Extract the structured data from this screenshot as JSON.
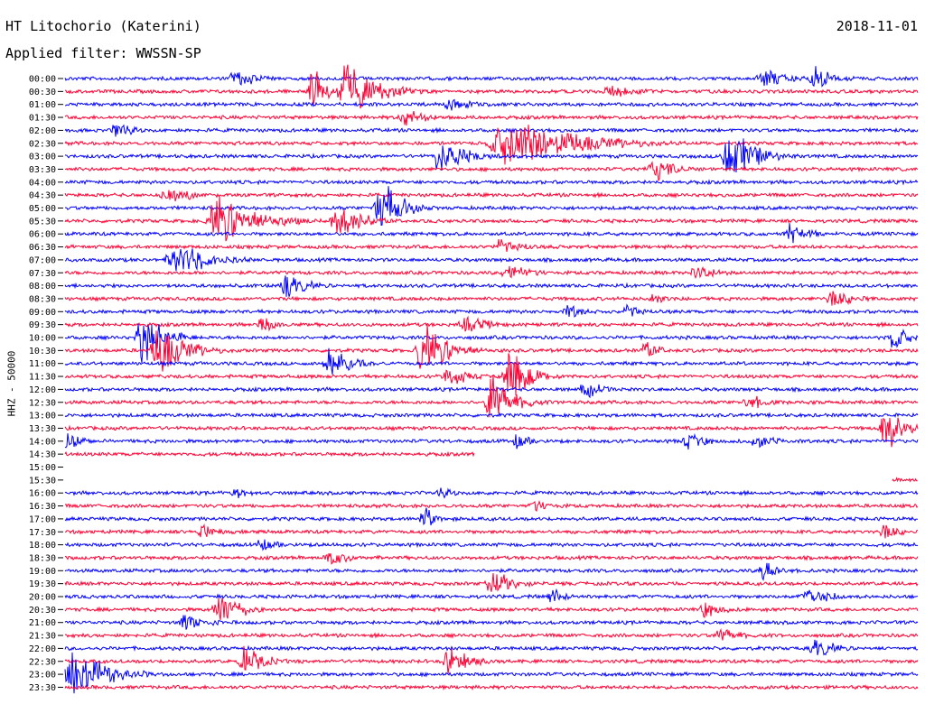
{
  "header": {
    "title": "HT Litochorio (Katerini)",
    "date": "2018-11-01",
    "filter": "Applied filter: WWSSN-SP"
  },
  "colors": {
    "blue": "#0000ff",
    "red": "#ff0033"
  },
  "chart_data": {
    "type": "line",
    "ylabel": "HHZ - 50000",
    "grid": false,
    "legend": "none",
    "rows": [
      {
        "label": "00:00",
        "color": "blue",
        "flat": false,
        "end": 1.0,
        "bursts": [
          [
            0.2,
            0.04,
            0.4
          ],
          [
            0.82,
            0.05,
            0.4
          ],
          [
            0.88,
            0.04,
            0.5
          ]
        ]
      },
      {
        "label": "00:30",
        "color": "red",
        "flat": false,
        "end": 1.0,
        "bursts": [
          [
            0.29,
            0.02,
            1.0
          ],
          [
            0.33,
            0.06,
            1.0
          ],
          [
            0.64,
            0.06,
            0.2
          ]
        ]
      },
      {
        "label": "01:00",
        "color": "blue",
        "flat": false,
        "end": 1.0,
        "bursts": [
          [
            0.45,
            0.05,
            0.2
          ]
        ]
      },
      {
        "label": "01:30",
        "color": "red",
        "flat": false,
        "end": 1.0,
        "bursts": [
          [
            0.4,
            0.05,
            0.3
          ]
        ]
      },
      {
        "label": "02:00",
        "color": "blue",
        "flat": false,
        "end": 1.0,
        "bursts": [
          [
            0.06,
            0.03,
            0.4
          ]
        ]
      },
      {
        "label": "02:30",
        "color": "red",
        "flat": false,
        "end": 1.0,
        "bursts": [
          [
            0.52,
            0.12,
            1.0
          ]
        ]
      },
      {
        "label": "03:00",
        "color": "blue",
        "flat": false,
        "end": 1.0,
        "bursts": [
          [
            0.44,
            0.05,
            0.8
          ],
          [
            0.78,
            0.05,
            1.0
          ]
        ]
      },
      {
        "label": "03:30",
        "color": "red",
        "flat": false,
        "end": 1.0,
        "bursts": [
          [
            0.69,
            0.04,
            0.5
          ]
        ]
      },
      {
        "label": "04:00",
        "color": "blue",
        "flat": false,
        "end": 1.0,
        "bursts": []
      },
      {
        "label": "04:30",
        "color": "red",
        "flat": false,
        "end": 1.0,
        "bursts": [
          [
            0.12,
            0.05,
            0.3
          ]
        ]
      },
      {
        "label": "05:00",
        "color": "blue",
        "flat": false,
        "end": 1.0,
        "bursts": [
          [
            0.37,
            0.04,
            1.0
          ]
        ]
      },
      {
        "label": "05:30",
        "color": "red",
        "flat": false,
        "end": 1.0,
        "bursts": [
          [
            0.18,
            0.07,
            1.0
          ],
          [
            0.32,
            0.05,
            0.7
          ]
        ]
      },
      {
        "label": "06:00",
        "color": "blue",
        "flat": false,
        "end": 1.0,
        "bursts": [
          [
            0.85,
            0.04,
            0.4
          ]
        ]
      },
      {
        "label": "06:30",
        "color": "red",
        "flat": false,
        "end": 1.0,
        "bursts": [
          [
            0.51,
            0.05,
            0.3
          ]
        ]
      },
      {
        "label": "07:00",
        "color": "blue",
        "flat": false,
        "end": 1.0,
        "bursts": [
          [
            0.13,
            0.06,
            0.8
          ]
        ]
      },
      {
        "label": "07:30",
        "color": "red",
        "flat": false,
        "end": 1.0,
        "bursts": [
          [
            0.52,
            0.05,
            0.3
          ],
          [
            0.74,
            0.04,
            0.3
          ]
        ]
      },
      {
        "label": "08:00",
        "color": "blue",
        "flat": false,
        "end": 1.0,
        "bursts": [
          [
            0.26,
            0.04,
            0.5
          ]
        ]
      },
      {
        "label": "08:30",
        "color": "red",
        "flat": false,
        "end": 1.0,
        "bursts": [
          [
            0.69,
            0.03,
            0.2
          ],
          [
            0.9,
            0.05,
            0.3
          ]
        ]
      },
      {
        "label": "09:00",
        "color": "blue",
        "flat": false,
        "end": 1.0,
        "bursts": [
          [
            0.59,
            0.03,
            0.3
          ],
          [
            0.66,
            0.03,
            0.3
          ]
        ]
      },
      {
        "label": "09:30",
        "color": "red",
        "flat": false,
        "end": 1.0,
        "bursts": [
          [
            0.23,
            0.03,
            0.3
          ],
          [
            0.47,
            0.05,
            0.3
          ]
        ]
      },
      {
        "label": "10:00",
        "color": "blue",
        "flat": false,
        "end": 1.0,
        "bursts": [
          [
            0.09,
            0.04,
            1.0
          ],
          [
            0.97,
            0.03,
            0.6
          ]
        ]
      },
      {
        "label": "10:30",
        "color": "red",
        "flat": false,
        "end": 1.0,
        "bursts": [
          [
            0.11,
            0.05,
            1.0
          ],
          [
            0.42,
            0.05,
            1.0
          ],
          [
            0.68,
            0.03,
            0.4
          ]
        ]
      },
      {
        "label": "11:00",
        "color": "blue",
        "flat": false,
        "end": 1.0,
        "bursts": [
          [
            0.31,
            0.04,
            0.7
          ]
        ]
      },
      {
        "label": "11:30",
        "color": "red",
        "flat": false,
        "end": 1.0,
        "bursts": [
          [
            0.45,
            0.04,
            0.4
          ],
          [
            0.52,
            0.04,
            1.0
          ]
        ]
      },
      {
        "label": "12:00",
        "color": "blue",
        "flat": false,
        "end": 1.0,
        "bursts": [
          [
            0.61,
            0.04,
            0.3
          ]
        ]
      },
      {
        "label": "12:30",
        "color": "red",
        "flat": false,
        "end": 1.0,
        "bursts": [
          [
            0.5,
            0.04,
            1.0
          ],
          [
            0.8,
            0.04,
            0.3
          ]
        ]
      },
      {
        "label": "13:00",
        "color": "blue",
        "flat": false,
        "end": 1.0,
        "bursts": []
      },
      {
        "label": "13:30",
        "color": "red",
        "flat": false,
        "end": 1.0,
        "bursts": [
          [
            0.96,
            0.03,
            1.0
          ]
        ]
      },
      {
        "label": "14:00",
        "color": "blue",
        "flat": false,
        "end": 1.0,
        "bursts": [
          [
            0.0,
            0.03,
            0.5
          ],
          [
            0.53,
            0.03,
            0.3
          ],
          [
            0.73,
            0.04,
            0.3
          ],
          [
            0.81,
            0.04,
            0.3
          ]
        ]
      },
      {
        "label": "14:30",
        "color": "red",
        "flat": false,
        "end": 0.48,
        "bursts": []
      },
      {
        "label": "15:00",
        "color": "blue",
        "flat": true,
        "end": 0.0,
        "bursts": []
      },
      {
        "label": "15:30",
        "color": "red",
        "flat": true,
        "end": 0.0,
        "bursts": [],
        "tail": [
          0.97,
          1.0
        ]
      },
      {
        "label": "16:00",
        "color": "blue",
        "flat": false,
        "end": 1.0,
        "bursts": [
          [
            0.2,
            0.03,
            0.2
          ],
          [
            0.44,
            0.03,
            0.2
          ]
        ]
      },
      {
        "label": "16:30",
        "color": "red",
        "flat": false,
        "end": 1.0,
        "bursts": [
          [
            0.55,
            0.04,
            0.2
          ]
        ]
      },
      {
        "label": "17:00",
        "color": "blue",
        "flat": false,
        "end": 1.0,
        "bursts": [
          [
            0.42,
            0.02,
            0.6
          ]
        ]
      },
      {
        "label": "17:30",
        "color": "red",
        "flat": false,
        "end": 1.0,
        "bursts": [
          [
            0.16,
            0.03,
            0.3
          ],
          [
            0.96,
            0.03,
            0.3
          ]
        ]
      },
      {
        "label": "18:00",
        "color": "blue",
        "flat": false,
        "end": 1.0,
        "bursts": [
          [
            0.23,
            0.04,
            0.2
          ]
        ]
      },
      {
        "label": "18:30",
        "color": "red",
        "flat": false,
        "end": 1.0,
        "bursts": [
          [
            0.31,
            0.04,
            0.3
          ]
        ]
      },
      {
        "label": "19:00",
        "color": "blue",
        "flat": false,
        "end": 1.0,
        "bursts": [
          [
            0.82,
            0.03,
            0.5
          ]
        ]
      },
      {
        "label": "19:30",
        "color": "red",
        "flat": false,
        "end": 1.0,
        "bursts": [
          [
            0.5,
            0.04,
            0.6
          ]
        ]
      },
      {
        "label": "20:00",
        "color": "blue",
        "flat": false,
        "end": 1.0,
        "bursts": [
          [
            0.57,
            0.03,
            0.3
          ],
          [
            0.87,
            0.04,
            0.5
          ]
        ]
      },
      {
        "label": "20:30",
        "color": "red",
        "flat": false,
        "end": 1.0,
        "bursts": [
          [
            0.18,
            0.04,
            0.8
          ],
          [
            0.75,
            0.04,
            0.3
          ]
        ]
      },
      {
        "label": "21:00",
        "color": "blue",
        "flat": false,
        "end": 1.0,
        "bursts": [
          [
            0.14,
            0.04,
            0.4
          ]
        ]
      },
      {
        "label": "21:30",
        "color": "red",
        "flat": false,
        "end": 1.0,
        "bursts": [
          [
            0.77,
            0.04,
            0.3
          ]
        ]
      },
      {
        "label": "22:00",
        "color": "blue",
        "flat": false,
        "end": 1.0,
        "bursts": [
          [
            0.88,
            0.04,
            0.4
          ]
        ]
      },
      {
        "label": "22:30",
        "color": "red",
        "flat": false,
        "end": 1.0,
        "bursts": [
          [
            0.21,
            0.04,
            0.6
          ],
          [
            0.45,
            0.04,
            0.6
          ]
        ]
      },
      {
        "label": "23:00",
        "color": "blue",
        "flat": false,
        "end": 1.0,
        "bursts": [
          [
            0.01,
            0.06,
            1.0
          ]
        ]
      },
      {
        "label": "23:30",
        "color": "red",
        "flat": false,
        "end": 1.0,
        "bursts": []
      }
    ]
  }
}
